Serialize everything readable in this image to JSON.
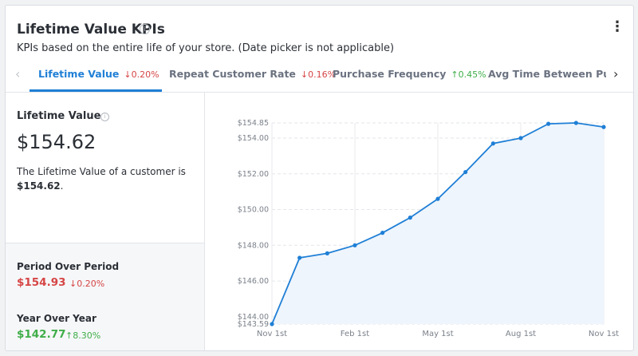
{
  "header": {
    "title": "Lifetime Value KPIs",
    "info_icon": "info-icon",
    "subtitle": "KPIs based on the entire life of your store. (Date picker is not applicable)",
    "menu_icon": "kebab-menu-icon"
  },
  "tabs": [
    {
      "label": "Lifetime Value",
      "delta": "↓0.20%",
      "direction": "down",
      "active": true
    },
    {
      "label": "Repeat Customer Rate",
      "delta": "↓0.16%",
      "direction": "down",
      "active": false
    },
    {
      "label": "Purchase Frequency",
      "delta": "↑0.45%",
      "direction": "up",
      "active": false
    },
    {
      "label": "Avg Time Between Purch",
      "delta": "",
      "direction": "",
      "active": false
    }
  ],
  "summary": {
    "label": "Lifetime Value",
    "value": "$154.62",
    "description_prefix": "The Lifetime Value of a customer is",
    "description_value": "$154.62",
    "description_suffix": "."
  },
  "comparisons": {
    "period_over_period": {
      "label": "Period Over Period",
      "value": "$154.93",
      "delta": "↓0.20%"
    },
    "year_over_year": {
      "label": "Year Over Year",
      "value": "$142.77",
      "delta": "↑8.30%"
    }
  },
  "colors": {
    "accent": "#1f7fd6",
    "down": "#d64545",
    "up": "#3fae49",
    "area_fill": "#eef5fc"
  },
  "chart_data": {
    "type": "area",
    "x_ticks": [
      "Nov 1st",
      "Feb 1st",
      "May 1st",
      "Aug 1st",
      "Nov 1st"
    ],
    "y_ticks": [
      "$143.59",
      "$144.00",
      "$146.00",
      "$148.00",
      "$150.00",
      "$152.00",
      "$154.00",
      "$154.85"
    ],
    "y_tick_values": [
      143.59,
      144,
      146,
      148,
      150,
      152,
      154,
      154.85
    ],
    "ylim": [
      143.59,
      154.85
    ],
    "series": [
      {
        "values": [
          143.59,
          147.3,
          147.55,
          148.0,
          148.7,
          149.55,
          150.6,
          152.1,
          153.7,
          154.0,
          154.8,
          154.85,
          154.62
        ]
      }
    ],
    "grid": true
  }
}
